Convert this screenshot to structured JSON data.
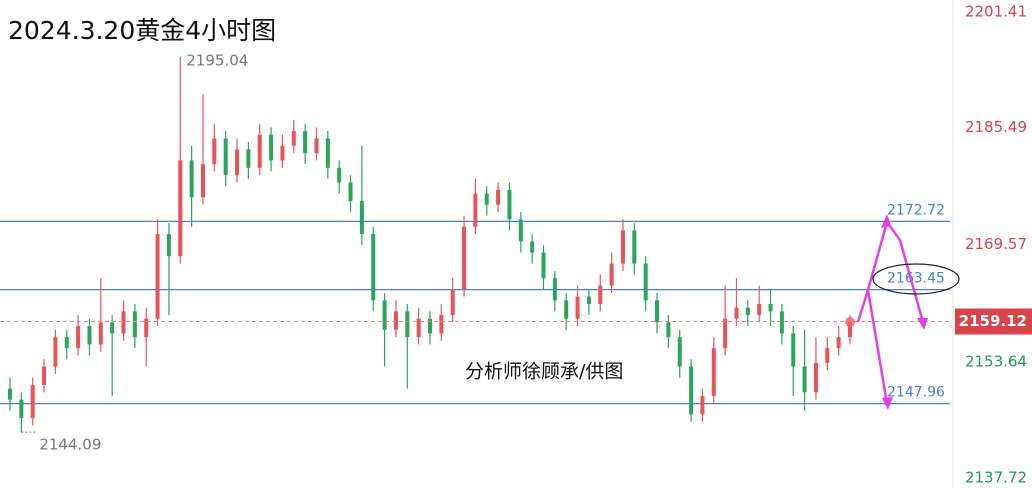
{
  "chart_data": {
    "type": "candlestick",
    "title": "2024.3.20黄金4小时图",
    "watermark": "分析师徐顾承/供图",
    "up_color": "#e8545a",
    "down_color": "#2aa55a",
    "ylim": [
      2136.5,
      2202.8
    ],
    "yticks": [
      2201.41,
      2185.49,
      2169.57,
      2153.64,
      2137.72
    ],
    "last_price": 2159.12,
    "high_label": 2195.04,
    "low_label": 2144.09,
    "levels": [
      {
        "value": 2172.72,
        "color": "#4a7ee0"
      },
      {
        "value": 2163.45,
        "color": "#4a7ee0"
      },
      {
        "value": 2147.96,
        "color": "#4a7ee0"
      }
    ],
    "ohlc": [
      [
        2150,
        2151.5,
        2147,
        2148.5
      ],
      [
        2148.5,
        2149.5,
        2144.09,
        2146
      ],
      [
        2146,
        2151.5,
        2145,
        2150.5
      ],
      [
        2150.5,
        2154,
        2149.5,
        2153
      ],
      [
        2153,
        2158,
        2152,
        2157
      ],
      [
        2157,
        2158,
        2154,
        2155.5
      ],
      [
        2155.5,
        2160,
        2154.5,
        2158.5
      ],
      [
        2158.5,
        2159.5,
        2154.5,
        2156
      ],
      [
        2156,
        2165,
        2155,
        2159
      ],
      [
        2159,
        2160,
        2149,
        2157.5
      ],
      [
        2157.5,
        2162,
        2156.5,
        2160.5
      ],
      [
        2160.5,
        2161.5,
        2155.5,
        2157
      ],
      [
        2157,
        2161,
        2153,
        2159.5
      ],
      [
        2159.5,
        2173,
        2158.5,
        2171
      ],
      [
        2171,
        2172.5,
        2160,
        2168
      ],
      [
        2168,
        2195.04,
        2167,
        2181
      ],
      [
        2181,
        2183,
        2172,
        2176
      ],
      [
        2176,
        2190,
        2175,
        2180.5
      ],
      [
        2180.5,
        2186,
        2179.5,
        2184
      ],
      [
        2184,
        2185,
        2177.5,
        2179
      ],
      [
        2179,
        2184,
        2178,
        2182.5
      ],
      [
        2182.5,
        2183.5,
        2178.5,
        2180
      ],
      [
        2180,
        2186,
        2179,
        2184.5
      ],
      [
        2184.5,
        2185.5,
        2179.5,
        2181
      ],
      [
        2181,
        2184.5,
        2180,
        2183
      ],
      [
        2183,
        2186.5,
        2182,
        2185
      ],
      [
        2185,
        2186,
        2180.5,
        2182
      ],
      [
        2182,
        2185.5,
        2181,
        2184
      ],
      [
        2184,
        2185,
        2178.5,
        2180
      ],
      [
        2180,
        2181,
        2176.5,
        2178
      ],
      [
        2178,
        2179,
        2174,
        2175.5
      ],
      [
        2175.5,
        2183,
        2169.5,
        2171
      ],
      [
        2171,
        2172,
        2160.5,
        2162
      ],
      [
        2162,
        2163,
        2153,
        2158
      ],
      [
        2158,
        2162,
        2157,
        2160.5
      ],
      [
        2160.5,
        2161.5,
        2150,
        2157
      ],
      [
        2157,
        2161,
        2156,
        2159.5
      ],
      [
        2159.5,
        2160.5,
        2156,
        2157.5
      ],
      [
        2157.5,
        2161.5,
        2156.5,
        2160
      ],
      [
        2160,
        2165,
        2159,
        2163.5
      ],
      [
        2163.5,
        2173.5,
        2162.5,
        2172
      ],
      [
        2172,
        2178.5,
        2171,
        2176.5
      ],
      [
        2176.5,
        2177.5,
        2173.5,
        2175
      ],
      [
        2175,
        2178,
        2174,
        2177
      ],
      [
        2177,
        2178,
        2171.5,
        2173
      ],
      [
        2173,
        2174,
        2168.5,
        2170
      ],
      [
        2170,
        2171,
        2167,
        2168.5
      ],
      [
        2168.5,
        2169.5,
        2163.5,
        2165
      ],
      [
        2165,
        2166,
        2160.5,
        2162
      ],
      [
        2162,
        2163,
        2158,
        2159.5
      ],
      [
        2159.5,
        2164,
        2158.5,
        2162.5
      ],
      [
        2162.5,
        2163.5,
        2160,
        2161.5
      ],
      [
        2161.5,
        2165.5,
        2160.5,
        2164
      ],
      [
        2164,
        2168.5,
        2163,
        2167
      ],
      [
        2167,
        2173,
        2166,
        2171.5
      ],
      [
        2171.5,
        2172.5,
        2165.5,
        2167
      ],
      [
        2167,
        2168,
        2160.5,
        2162
      ],
      [
        2162,
        2163,
        2157.5,
        2159
      ],
      [
        2159,
        2160,
        2155.5,
        2157
      ],
      [
        2157,
        2158,
        2151.5,
        2153
      ],
      [
        2153,
        2154,
        2145.5,
        2146.5
      ],
      [
        2146.5,
        2150,
        2145.5,
        2149
      ],
      [
        2149,
        2157,
        2148,
        2155.5
      ],
      [
        2155.5,
        2164,
        2154.5,
        2159.5
      ],
      [
        2159.5,
        2165,
        2158.5,
        2161
      ],
      [
        2161,
        2162,
        2158.5,
        2160
      ],
      [
        2160,
        2164,
        2159,
        2161.5
      ],
      [
        2161.5,
        2163.5,
        2158.5,
        2160.5
      ],
      [
        2160.5,
        2161.5,
        2156,
        2157.5
      ],
      [
        2157.5,
        2158.5,
        2149,
        2153
      ],
      [
        2153,
        2158,
        2147,
        2149.5
      ],
      [
        2149.5,
        2157,
        2148.5,
        2153.5
      ],
      [
        2153.5,
        2157,
        2152.5,
        2155.5
      ],
      [
        2155.5,
        2158.5,
        2154.5,
        2157
      ],
      [
        2157,
        2160,
        2156,
        2159.12
      ]
    ]
  }
}
